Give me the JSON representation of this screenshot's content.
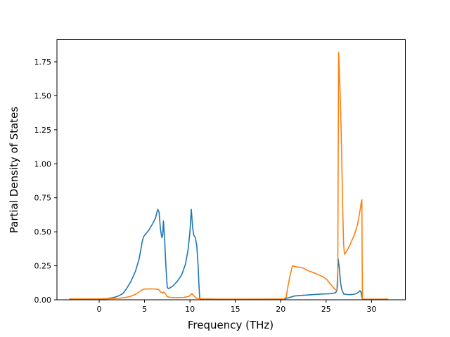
{
  "figure": {
    "xlabel": "Frequency (THz)",
    "ylabel": "Partial Density of States",
    "background_color": "#ffffff",
    "spine_color": "#000000"
  },
  "chart_data": {
    "type": "line",
    "title": "",
    "xlabel": "Frequency (THz)",
    "ylabel": "Partial Density of States",
    "grid": false,
    "legend": null,
    "xlim": [
      -4.65,
      33.73
    ],
    "ylim": [
      0,
      1.9125
    ],
    "xticks": {
      "values": [
        0,
        5,
        10,
        15,
        20,
        25,
        30
      ],
      "labels": [
        "0",
        "5",
        "10",
        "15",
        "20",
        "25",
        "30"
      ]
    },
    "yticks": {
      "values": [
        0.0,
        0.25,
        0.5,
        0.75,
        1.0,
        1.25,
        1.5,
        1.75
      ],
      "labels": [
        "0.00",
        "0.25",
        "0.50",
        "0.75",
        "1.00",
        "1.25",
        "1.50",
        "1.75"
      ]
    },
    "series": [
      {
        "name": "pdos-series-blue",
        "color": "#1f77b4",
        "points": [
          [
            -3.3,
            0.003
          ],
          [
            -1.0,
            0.003
          ],
          [
            0.0,
            0.004
          ],
          [
            0.8,
            0.008
          ],
          [
            1.5,
            0.015
          ],
          [
            2.0,
            0.025
          ],
          [
            2.6,
            0.045
          ],
          [
            3.0,
            0.08
          ],
          [
            3.5,
            0.135
          ],
          [
            4.0,
            0.21
          ],
          [
            4.4,
            0.3
          ],
          [
            4.75,
            0.43
          ],
          [
            4.9,
            0.465
          ],
          [
            5.2,
            0.49
          ],
          [
            5.5,
            0.515
          ],
          [
            5.9,
            0.56
          ],
          [
            6.2,
            0.6
          ],
          [
            6.45,
            0.665
          ],
          [
            6.6,
            0.645
          ],
          [
            6.75,
            0.52
          ],
          [
            6.9,
            0.458
          ],
          [
            7.0,
            0.475
          ],
          [
            7.08,
            0.58
          ],
          [
            7.2,
            0.46
          ],
          [
            7.35,
            0.25
          ],
          [
            7.5,
            0.09
          ],
          [
            7.65,
            0.082
          ],
          [
            8.1,
            0.1
          ],
          [
            8.6,
            0.135
          ],
          [
            9.1,
            0.185
          ],
          [
            9.5,
            0.26
          ],
          [
            9.8,
            0.37
          ],
          [
            10.0,
            0.5
          ],
          [
            10.15,
            0.665
          ],
          [
            10.3,
            0.53
          ],
          [
            10.42,
            0.475
          ],
          [
            10.6,
            0.455
          ],
          [
            10.75,
            0.4
          ],
          [
            10.9,
            0.25
          ],
          [
            11.0,
            0.1
          ],
          [
            11.08,
            0.01
          ],
          [
            11.2,
            0.002
          ],
          [
            15.0,
            0.002
          ],
          [
            20.3,
            0.003
          ],
          [
            20.7,
            0.012
          ],
          [
            21.5,
            0.028
          ],
          [
            22.5,
            0.033
          ],
          [
            23.5,
            0.038
          ],
          [
            24.5,
            0.042
          ],
          [
            25.5,
            0.045
          ],
          [
            26.05,
            0.052
          ],
          [
            26.2,
            0.07
          ],
          [
            26.33,
            0.3
          ],
          [
            26.45,
            0.24
          ],
          [
            26.6,
            0.12
          ],
          [
            26.75,
            0.07
          ],
          [
            26.95,
            0.042
          ],
          [
            27.5,
            0.038
          ],
          [
            28.0,
            0.04
          ],
          [
            28.35,
            0.045
          ],
          [
            28.6,
            0.058
          ],
          [
            28.72,
            0.067
          ],
          [
            28.85,
            0.055
          ],
          [
            28.95,
            0.015
          ],
          [
            29.05,
            0.003
          ],
          [
            30.0,
            0.002
          ],
          [
            31.8,
            0.002
          ]
        ]
      },
      {
        "name": "pdos-series-orange",
        "color": "#ff7f0e",
        "points": [
          [
            -3.3,
            0.006
          ],
          [
            -1.0,
            0.006
          ],
          [
            0.0,
            0.007
          ],
          [
            1.0,
            0.008
          ],
          [
            2.0,
            0.011
          ],
          [
            2.8,
            0.016
          ],
          [
            3.4,
            0.024
          ],
          [
            4.0,
            0.04
          ],
          [
            4.5,
            0.062
          ],
          [
            4.8,
            0.075
          ],
          [
            5.0,
            0.079
          ],
          [
            5.6,
            0.08
          ],
          [
            6.3,
            0.079
          ],
          [
            6.6,
            0.073
          ],
          [
            6.8,
            0.056
          ],
          [
            7.0,
            0.048
          ],
          [
            7.1,
            0.058
          ],
          [
            7.3,
            0.045
          ],
          [
            7.5,
            0.023
          ],
          [
            7.8,
            0.018
          ],
          [
            8.5,
            0.016
          ],
          [
            9.3,
            0.017
          ],
          [
            9.9,
            0.025
          ],
          [
            10.2,
            0.046
          ],
          [
            10.45,
            0.028
          ],
          [
            10.7,
            0.012
          ],
          [
            11.3,
            0.007
          ],
          [
            13.0,
            0.005
          ],
          [
            17.0,
            0.005
          ],
          [
            20.4,
            0.006
          ],
          [
            20.6,
            0.02
          ],
          [
            20.8,
            0.1
          ],
          [
            21.0,
            0.17
          ],
          [
            21.3,
            0.25
          ],
          [
            21.7,
            0.243
          ],
          [
            22.4,
            0.235
          ],
          [
            23.0,
            0.215
          ],
          [
            23.6,
            0.2
          ],
          [
            24.2,
            0.183
          ],
          [
            24.7,
            0.168
          ],
          [
            25.1,
            0.148
          ],
          [
            25.45,
            0.118
          ],
          [
            25.8,
            0.09
          ],
          [
            26.05,
            0.073
          ],
          [
            26.2,
            0.072
          ],
          [
            26.28,
            0.1
          ],
          [
            26.33,
            1.0
          ],
          [
            26.38,
            1.82
          ],
          [
            26.5,
            1.6
          ],
          [
            26.62,
            1.35
          ],
          [
            26.72,
            1.05
          ],
          [
            26.82,
            0.7
          ],
          [
            26.92,
            0.42
          ],
          [
            27.02,
            0.335
          ],
          [
            27.3,
            0.36
          ],
          [
            27.7,
            0.415
          ],
          [
            28.1,
            0.475
          ],
          [
            28.45,
            0.55
          ],
          [
            28.7,
            0.64
          ],
          [
            28.88,
            0.72
          ],
          [
            28.94,
            0.735
          ],
          [
            28.97,
            0.3
          ],
          [
            29.0,
            0.004
          ],
          [
            29.5,
            0.004
          ],
          [
            31.85,
            0.005
          ]
        ]
      }
    ]
  }
}
